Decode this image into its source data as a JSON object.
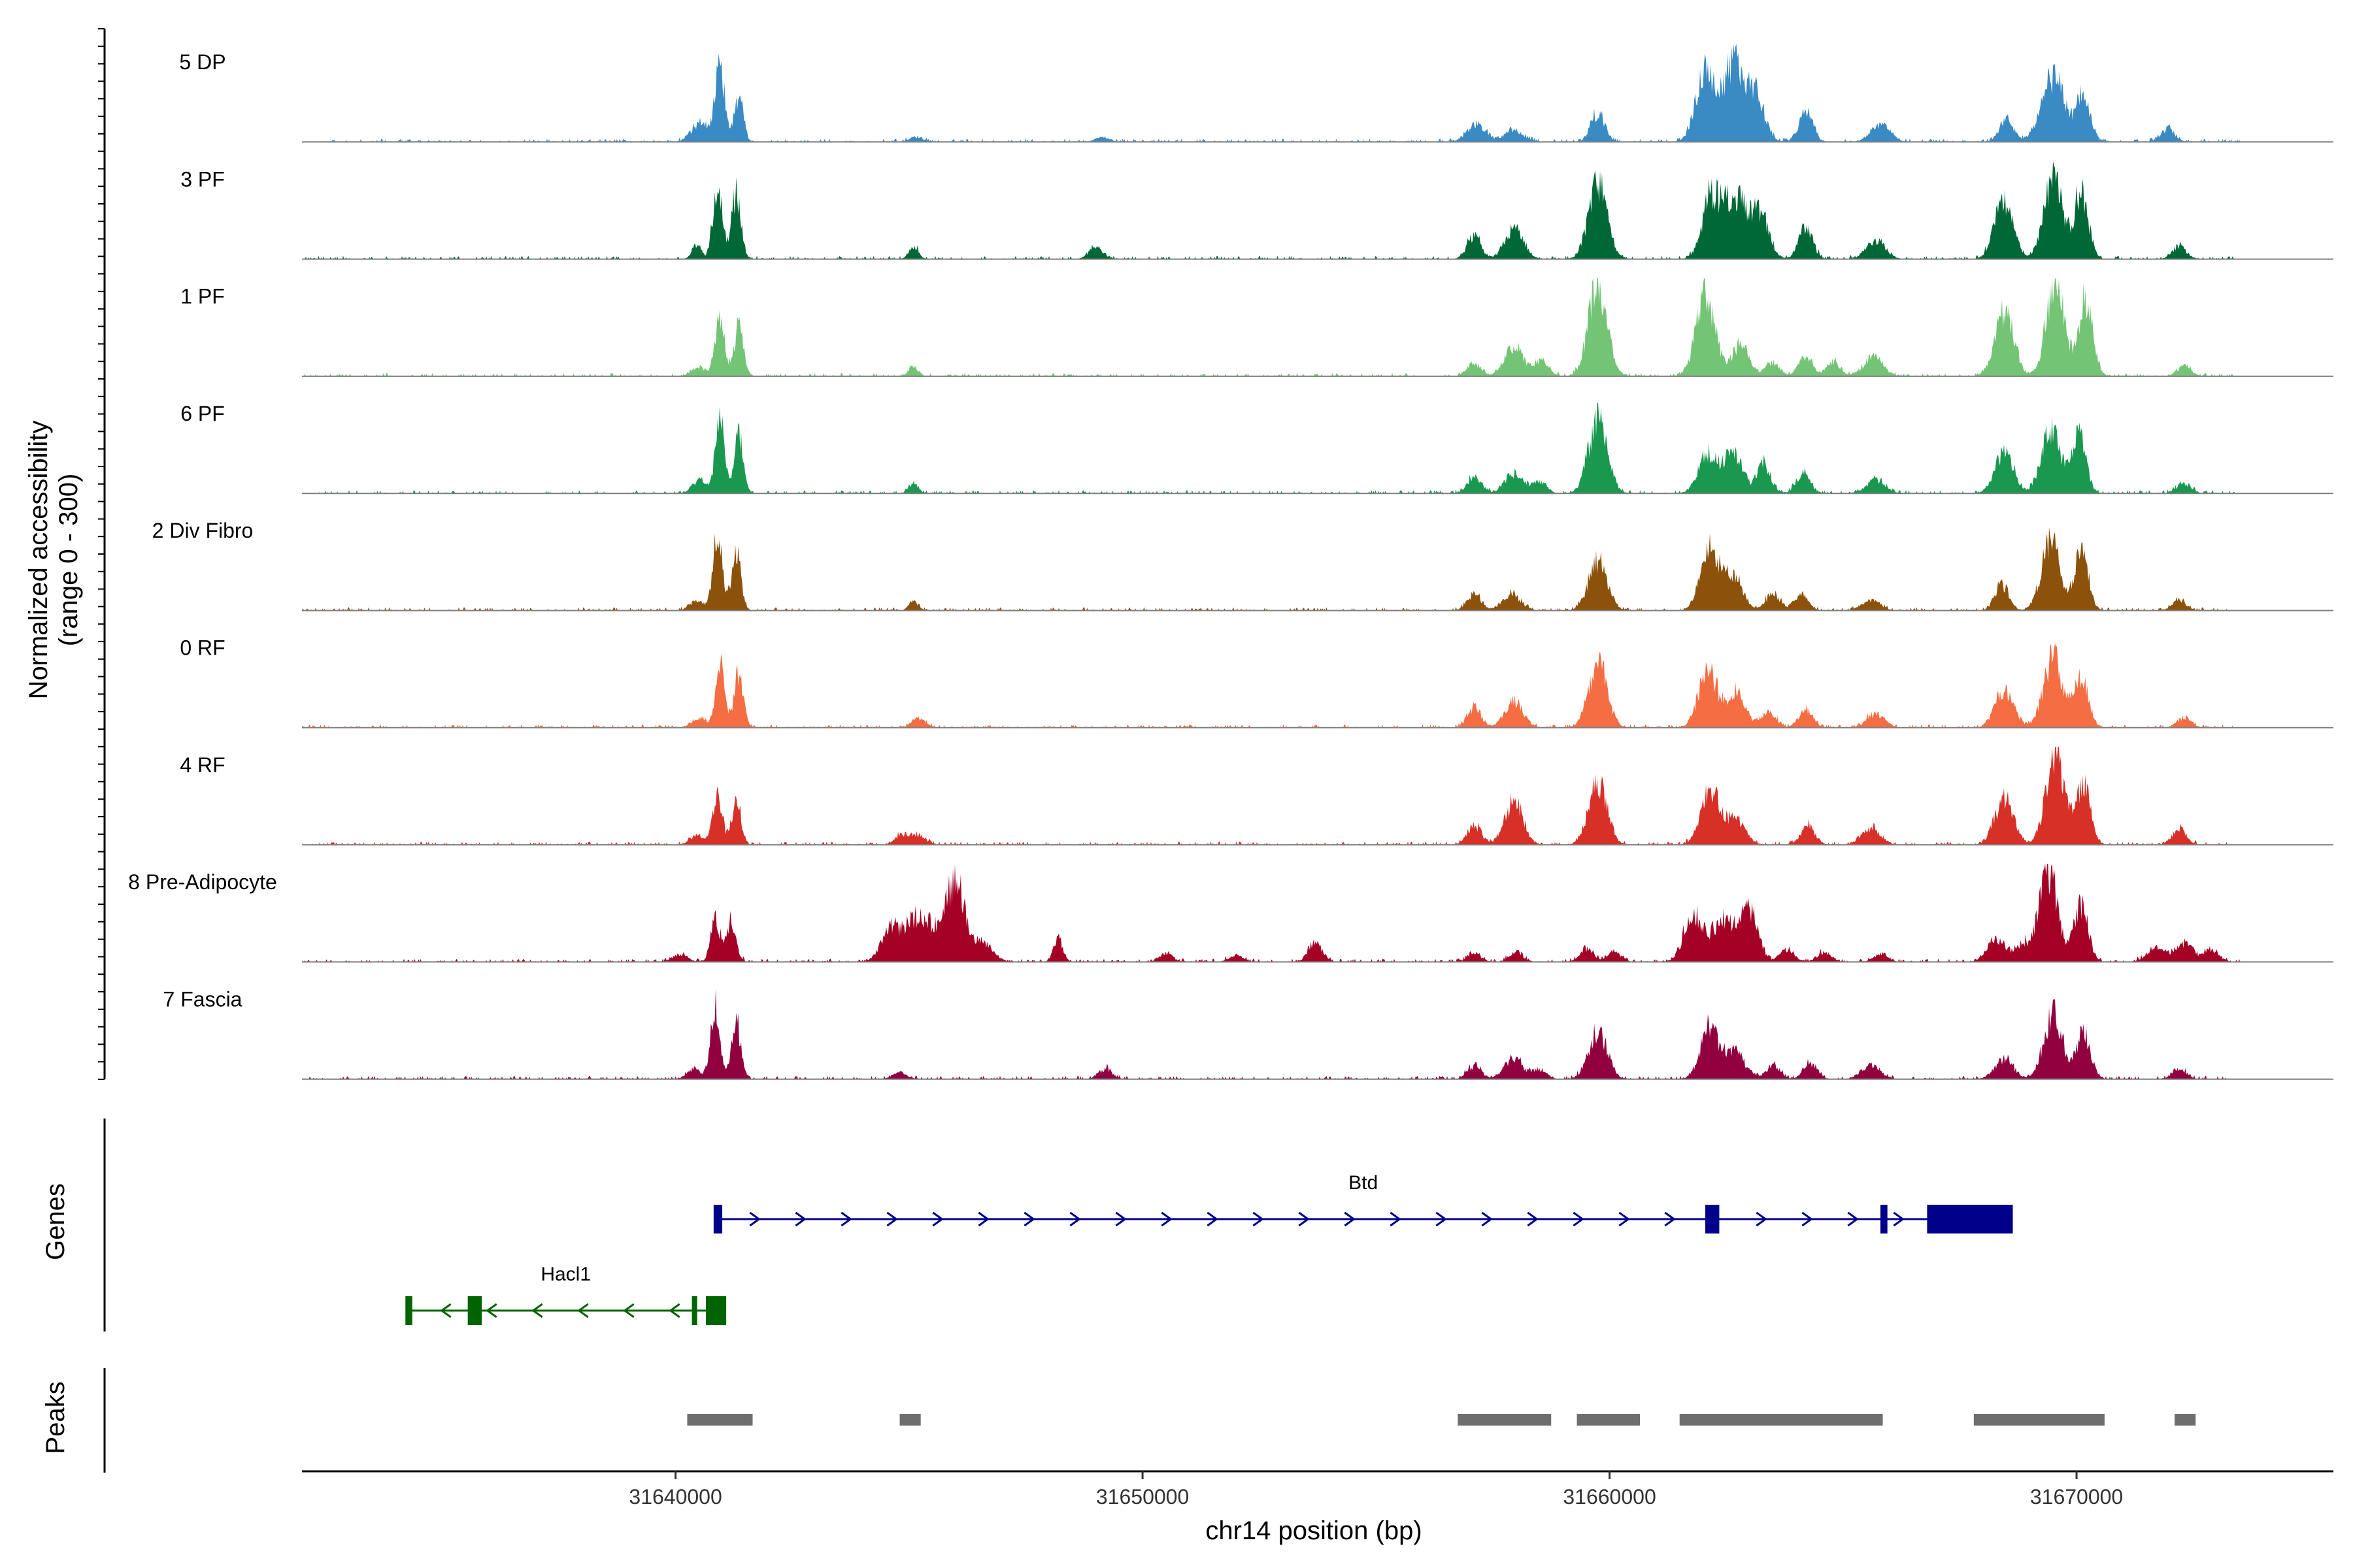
{
  "chart_data": {
    "type": "area",
    "ylabel_line1": "Normalized accessibility",
    "ylabel_line2": "(range 0 - 300)",
    "y_range": [
      0,
      300
    ],
    "xlabel": "chr14 position (bp)",
    "xlim": [
      31632000,
      31675500
    ],
    "x_ticks": [
      31640000,
      31650000,
      31660000,
      31670000
    ],
    "x_tick_labels": [
      "31640000",
      "31650000",
      "31660000",
      "31670000"
    ],
    "coverage_extent": [
      31632000,
      31673500
    ],
    "tracks": [
      {
        "name": "5 DP",
        "color": "#3A8AC4",
        "peaks": [
          [
            31640950,
            230,
            100
          ],
          [
            31641350,
            140,
            100
          ],
          [
            31640550,
            60,
            200
          ],
          [
            31645150,
            15,
            150
          ],
          [
            31649150,
            15,
            150
          ],
          [
            31657150,
            55,
            200
          ],
          [
            31657950,
            35,
            200
          ],
          [
            31659750,
            90,
            150
          ],
          [
            31662050,
            220,
            200
          ],
          [
            31662650,
            240,
            200
          ],
          [
            31663100,
            150,
            200
          ],
          [
            31664200,
            95,
            150
          ],
          [
            31665800,
            55,
            200
          ],
          [
            31668500,
            70,
            150
          ],
          [
            31669500,
            200,
            250
          ],
          [
            31670150,
            140,
            150
          ],
          [
            31671950,
            40,
            150
          ]
        ]
      },
      {
        "name": "3 PF",
        "color": "#006837",
        "peaks": [
          [
            31640900,
            230,
            100
          ],
          [
            31641300,
            200,
            100
          ],
          [
            31640450,
            40,
            100
          ],
          [
            31645100,
            40,
            100
          ],
          [
            31649000,
            35,
            150
          ],
          [
            31657100,
            70,
            150
          ],
          [
            31657950,
            90,
            200
          ],
          [
            31659750,
            230,
            200
          ],
          [
            31662200,
            200,
            200
          ],
          [
            31662700,
            180,
            200
          ],
          [
            31663200,
            140,
            200
          ],
          [
            31664200,
            95,
            150
          ],
          [
            31665700,
            60,
            200
          ],
          [
            31668450,
            180,
            200
          ],
          [
            31669500,
            250,
            200
          ],
          [
            31670100,
            200,
            150
          ],
          [
            31672200,
            40,
            150
          ]
        ]
      },
      {
        "name": "1 PF",
        "color": "#74C476",
        "peaks": [
          [
            31640950,
            190,
            100
          ],
          [
            31641350,
            150,
            100
          ],
          [
            31640500,
            30,
            150
          ],
          [
            31645100,
            30,
            100
          ],
          [
            31657100,
            40,
            150
          ],
          [
            31657950,
            90,
            200
          ],
          [
            31658550,
            50,
            150
          ],
          [
            31659750,
            280,
            200
          ],
          [
            31662050,
            250,
            200
          ],
          [
            31662800,
            90,
            200
          ],
          [
            31663500,
            40,
            150
          ],
          [
            31664200,
            60,
            150
          ],
          [
            31664800,
            45,
            150
          ],
          [
            31665650,
            60,
            200
          ],
          [
            31668450,
            200,
            200
          ],
          [
            31669550,
            280,
            200
          ],
          [
            31670200,
            230,
            150
          ],
          [
            31672300,
            30,
            150
          ]
        ]
      },
      {
        "name": "6 PF",
        "color": "#1A9850",
        "peaks": [
          [
            31640950,
            220,
            100
          ],
          [
            31641350,
            180,
            100
          ],
          [
            31640500,
            40,
            150
          ],
          [
            31645100,
            30,
            100
          ],
          [
            31657100,
            50,
            150
          ],
          [
            31657950,
            60,
            200
          ],
          [
            31658500,
            35,
            150
          ],
          [
            31659750,
            230,
            200
          ],
          [
            31662100,
            120,
            200
          ],
          [
            31662650,
            120,
            200
          ],
          [
            31663300,
            90,
            150
          ],
          [
            31664150,
            65,
            150
          ],
          [
            31665700,
            40,
            200
          ],
          [
            31668450,
            120,
            200
          ],
          [
            31669450,
            200,
            200
          ],
          [
            31670050,
            170,
            150
          ],
          [
            31672300,
            30,
            150
          ]
        ]
      },
      {
        "name": "2 Div Fibro",
        "color": "#8C510A",
        "peaks": [
          [
            31640900,
            230,
            100
          ],
          [
            31641300,
            170,
            100
          ],
          [
            31640450,
            30,
            150
          ],
          [
            31645100,
            30,
            100
          ],
          [
            31657100,
            50,
            150
          ],
          [
            31657900,
            50,
            200
          ],
          [
            31659750,
            150,
            200
          ],
          [
            31662150,
            180,
            200
          ],
          [
            31662650,
            100,
            200
          ],
          [
            31663500,
            50,
            150
          ],
          [
            31664100,
            50,
            150
          ],
          [
            31665600,
            30,
            200
          ],
          [
            31668400,
            80,
            150
          ],
          [
            31669450,
            210,
            200
          ],
          [
            31670100,
            170,
            150
          ],
          [
            31672200,
            30,
            150
          ]
        ]
      },
      {
        "name": "0 RF",
        "color": "#F46D43",
        "peaks": [
          [
            31640950,
            190,
            100
          ],
          [
            31641350,
            160,
            100
          ],
          [
            31640500,
            30,
            150
          ],
          [
            31645200,
            30,
            150
          ],
          [
            31657100,
            60,
            150
          ],
          [
            31657950,
            80,
            200
          ],
          [
            31659750,
            200,
            200
          ],
          [
            31662100,
            170,
            200
          ],
          [
            31662700,
            110,
            200
          ],
          [
            31663400,
            50,
            150
          ],
          [
            31664200,
            60,
            150
          ],
          [
            31665700,
            40,
            200
          ],
          [
            31668450,
            110,
            200
          ],
          [
            31669500,
            220,
            200
          ],
          [
            31670100,
            160,
            150
          ],
          [
            31672300,
            30,
            150
          ]
        ]
      },
      {
        "name": "4 RF",
        "color": "#D73027",
        "peaks": [
          [
            31640900,
            150,
            100
          ],
          [
            31641300,
            140,
            100
          ],
          [
            31640450,
            30,
            150
          ],
          [
            31644850,
            30,
            150
          ],
          [
            31645200,
            30,
            150
          ],
          [
            31657100,
            60,
            150
          ],
          [
            31657950,
            130,
            200
          ],
          [
            31659750,
            190,
            200
          ],
          [
            31662150,
            170,
            200
          ],
          [
            31662700,
            80,
            200
          ],
          [
            31664250,
            60,
            150
          ],
          [
            31665600,
            50,
            200
          ],
          [
            31668450,
            140,
            200
          ],
          [
            31669550,
            280,
            200
          ],
          [
            31670150,
            180,
            150
          ],
          [
            31672200,
            50,
            150
          ]
        ]
      },
      {
        "name": "8 Pre-Adipocyte",
        "color": "#A50026",
        "peaks": [
          [
            31640850,
            130,
            100
          ],
          [
            31641200,
            130,
            100
          ],
          [
            31640100,
            25,
            150
          ],
          [
            31644600,
            100,
            200
          ],
          [
            31645100,
            120,
            200
          ],
          [
            31645500,
            90,
            200
          ],
          [
            31646000,
            250,
            200
          ],
          [
            31646600,
            60,
            200
          ],
          [
            31648200,
            70,
            100
          ],
          [
            31650500,
            25,
            150
          ],
          [
            31652000,
            20,
            150
          ],
          [
            31653700,
            60,
            150
          ],
          [
            31657100,
            25,
            150
          ],
          [
            31658000,
            30,
            150
          ],
          [
            31659500,
            40,
            150
          ],
          [
            31660100,
            30,
            150
          ],
          [
            31661800,
            150,
            200
          ],
          [
            31662400,
            130,
            200
          ],
          [
            31662950,
            180,
            200
          ],
          [
            31663800,
            40,
            150
          ],
          [
            31664600,
            30,
            150
          ],
          [
            31665800,
            25,
            150
          ],
          [
            31668300,
            70,
            200
          ],
          [
            31668850,
            50,
            150
          ],
          [
            31669400,
            280,
            200
          ],
          [
            31670100,
            170,
            150
          ],
          [
            31671700,
            40,
            200
          ],
          [
            31672300,
            55,
            200
          ],
          [
            31672900,
            40,
            150
          ]
        ]
      },
      {
        "name": "7 Fascia",
        "color": "#91003F",
        "peaks": [
          [
            31640850,
            220,
            100
          ],
          [
            31641300,
            170,
            100
          ],
          [
            31640400,
            30,
            150
          ],
          [
            31644800,
            20,
            150
          ],
          [
            31649200,
            30,
            150
          ],
          [
            31657100,
            40,
            150
          ],
          [
            31657950,
            60,
            200
          ],
          [
            31658500,
            30,
            150
          ],
          [
            31659750,
            150,
            200
          ],
          [
            31662150,
            160,
            200
          ],
          [
            31662700,
            80,
            200
          ],
          [
            31663500,
            40,
            150
          ],
          [
            31664300,
            50,
            150
          ],
          [
            31665600,
            40,
            200
          ],
          [
            31668450,
            60,
            200
          ],
          [
            31669500,
            200,
            200
          ],
          [
            31670150,
            140,
            150
          ],
          [
            31672200,
            30,
            150
          ]
        ]
      }
    ],
    "genes": [
      {
        "name": "Btd",
        "strand": "+",
        "color": "#00008B",
        "start": 31640850,
        "end": 31668600,
        "exons": [
          [
            31640850,
            31641000
          ],
          [
            31662050,
            31662350
          ],
          [
            31665800,
            31665950
          ],
          [
            31666800,
            31668600
          ]
        ]
      },
      {
        "name": "Hacl1",
        "strand": "-",
        "color": "#006400",
        "start": 31634250,
        "end": 31641050,
        "exons": [
          [
            31634250,
            31634350
          ],
          [
            31635550,
            31635850
          ],
          [
            31640350,
            31640450
          ],
          [
            31640650,
            31641050
          ]
        ]
      }
    ],
    "peak_regions": [
      [
        31640250,
        31641650
      ],
      [
        31644800,
        31645250
      ],
      [
        31656750,
        31658750
      ],
      [
        31659300,
        31660650
      ],
      [
        31661500,
        31665850
      ],
      [
        31667800,
        31670600
      ],
      [
        31672100,
        31672550
      ]
    ],
    "peak_color": "#6E6E6E",
    "genes_label": "Genes",
    "peaks_label": "Peaks"
  }
}
